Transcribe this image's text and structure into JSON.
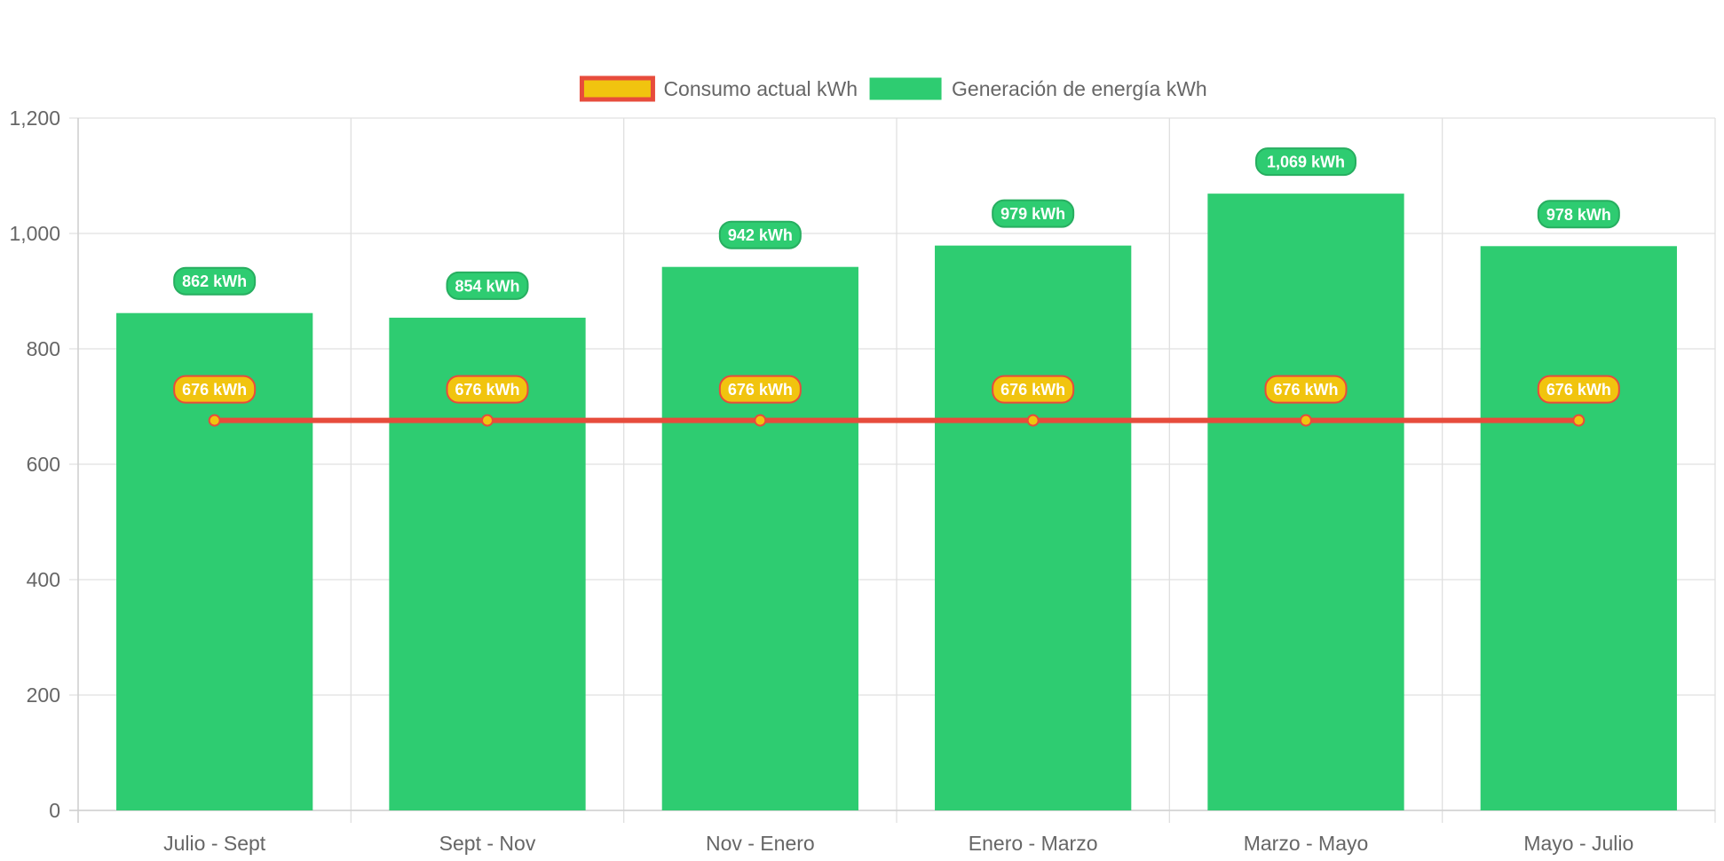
{
  "chart_data": {
    "type": "bar",
    "categories": [
      "Julio - Sept",
      "Sept - Nov",
      "Nov - Enero",
      "Enero - Marzo",
      "Marzo - Mayo",
      "Mayo - Julio"
    ],
    "series": [
      {
        "name": "Generación de energía kWh",
        "type": "bar",
        "values": [
          862,
          854,
          942,
          979,
          1069,
          978
        ],
        "labels": [
          "862 kWh",
          "854 kWh",
          "942 kWh",
          "979 kWh",
          "1,069 kWh",
          "978 kWh"
        ],
        "color": "#2ecc71",
        "border_color": "#27ae60"
      },
      {
        "name": "Consumo actual kWh",
        "type": "line",
        "values": [
          676,
          676,
          676,
          676,
          676,
          676
        ],
        "labels": [
          "676 kWh",
          "676 kWh",
          "676 kWh",
          "676 kWh",
          "676 kWh",
          "676 kWh"
        ],
        "color": "#f1c40f",
        "border_color": "#e74c3c"
      }
    ],
    "legend_order": [
      "Consumo actual kWh",
      "Generación de energía kWh"
    ],
    "ylim": [
      0,
      1200
    ],
    "yticks": [
      0,
      200,
      400,
      600,
      800,
      1000,
      1200
    ],
    "ytick_labels": [
      "0",
      "200",
      "400",
      "600",
      "800",
      "1,000",
      "1,200"
    ],
    "grid": true,
    "legend_position": "top-center",
    "title": "",
    "xlabel": "",
    "ylabel": ""
  }
}
